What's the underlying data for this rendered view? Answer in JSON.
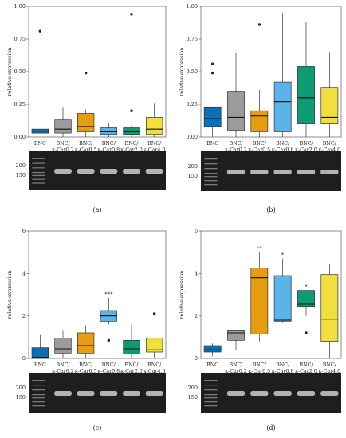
{
  "colors": [
    "#0a6fb5",
    "#9b9b9b",
    "#e89c12",
    "#5ab4e8",
    "#0d9b74",
    "#f0df3c"
  ],
  "chart_data": [
    {
      "type": "box",
      "panel_label": "(a)",
      "ylabel": "relative expression",
      "ylim": [
        0,
        1.0
      ],
      "yticks": [
        "0.00",
        "0.25",
        "0.50",
        "0.75",
        "1.00"
      ],
      "categories": [
        {
          "main": "BNC",
          "sub": ""
        },
        {
          "main": "BNC/",
          "sub": "κ-Car0.2"
        },
        {
          "main": "BNC/",
          "sub": "κ-Car0.5"
        },
        {
          "main": "BNC/",
          "sub": "κ-Car0.8"
        },
        {
          "main": "BNC/",
          "sub": "κ-Car2.0"
        },
        {
          "main": "BNC/",
          "sub": "κ-Car4.0"
        }
      ],
      "boxes": [
        {
          "whislo": 0.03,
          "q1": 0.03,
          "med": 0.045,
          "q3": 0.06,
          "whishi": 0.06,
          "fliers": [
            0.81
          ]
        },
        {
          "whislo": 0.0,
          "q1": 0.03,
          "med": 0.06,
          "q3": 0.13,
          "whishi": 0.23,
          "fliers": []
        },
        {
          "whislo": 0.0,
          "q1": 0.04,
          "med": 0.08,
          "q3": 0.18,
          "whishi": 0.21,
          "fliers": [
            0.49
          ]
        },
        {
          "whislo": 0.0,
          "q1": 0.02,
          "med": 0.04,
          "q3": 0.07,
          "whishi": 0.11,
          "fliers": []
        },
        {
          "whislo": 0.0,
          "q1": 0.02,
          "med": 0.04,
          "q3": 0.07,
          "whishi": 0.09,
          "fliers": [
            0.2,
            0.94
          ]
        },
        {
          "whislo": 0.0,
          "q1": 0.02,
          "med": 0.06,
          "q3": 0.15,
          "whishi": 0.26,
          "fliers": []
        }
      ],
      "significance": [
        "",
        "",
        "",
        "",
        "",
        ""
      ],
      "ladder": [
        "200",
        "150"
      ]
    },
    {
      "type": "box",
      "panel_label": "(b)",
      "ylabel": "relative expression",
      "ylim": [
        0,
        1.0
      ],
      "yticks": [
        "0.00",
        "0.25",
        "0.50",
        "0.75",
        "1.00"
      ],
      "categories": [
        {
          "main": "BNC",
          "sub": ""
        },
        {
          "main": "BNC/",
          "sub": "κ-Car0.2"
        },
        {
          "main": "BNC/",
          "sub": "κ-Car0.5"
        },
        {
          "main": "BNC/",
          "sub": "κ-Car0.8"
        },
        {
          "main": "BNC/",
          "sub": "κ-Car2.0"
        },
        {
          "main": "BNC/",
          "sub": "κ-Car4.0"
        }
      ],
      "boxes": [
        {
          "whislo": 0.0,
          "q1": 0.08,
          "med": 0.14,
          "q3": 0.23,
          "whishi": 0.23,
          "fliers": [
            0.49,
            0.56
          ]
        },
        {
          "whislo": 0.0,
          "q1": 0.05,
          "med": 0.15,
          "q3": 0.35,
          "whishi": 0.64,
          "fliers": []
        },
        {
          "whislo": 0.0,
          "q1": 0.04,
          "med": 0.16,
          "q3": 0.2,
          "whishi": 0.36,
          "fliers": [
            0.86
          ]
        },
        {
          "whislo": 0.0,
          "q1": 0.04,
          "med": 0.27,
          "q3": 0.42,
          "whishi": 0.95,
          "fliers": []
        },
        {
          "whislo": 0.0,
          "q1": 0.1,
          "med": 0.3,
          "q3": 0.54,
          "whishi": 0.88,
          "fliers": []
        },
        {
          "whislo": 0.0,
          "q1": 0.1,
          "med": 0.15,
          "q3": 0.38,
          "whishi": 0.65,
          "fliers": []
        }
      ],
      "significance": [
        "",
        "",
        "",
        "",
        "",
        ""
      ],
      "ladder": [
        "200",
        "150"
      ]
    },
    {
      "type": "box",
      "panel_label": "(c)",
      "ylabel": "relative expression",
      "ylim": [
        0,
        6
      ],
      "yticks": [
        "0",
        "2",
        "4",
        "6"
      ],
      "categories": [
        {
          "main": "BNC",
          "sub": ""
        },
        {
          "main": "BNC/",
          "sub": "κ-Car0.2"
        },
        {
          "main": "BNC/",
          "sub": "κ-Car0.5"
        },
        {
          "main": "BNC/",
          "sub": "κ-Car0.8"
        },
        {
          "main": "BNC/",
          "sub": "κ-Car2.0"
        },
        {
          "main": "BNC/",
          "sub": "κ-Car4.0"
        }
      ],
      "boxes": [
        {
          "whislo": 0.0,
          "q1": 0.0,
          "med": 0.05,
          "q3": 0.5,
          "whishi": 1.1,
          "fliers": []
        },
        {
          "whislo": 0.0,
          "q1": 0.25,
          "med": 0.45,
          "q3": 0.95,
          "whishi": 1.3,
          "fliers": []
        },
        {
          "whislo": 0.0,
          "q1": 0.25,
          "med": 0.6,
          "q3": 1.2,
          "whishi": 1.55,
          "fliers": []
        },
        {
          "whislo": 1.6,
          "q1": 1.75,
          "med": 2.0,
          "q3": 2.25,
          "whishi": 2.85,
          "fliers": [
            0.85
          ]
        },
        {
          "whislo": 0.0,
          "q1": 0.2,
          "med": 0.45,
          "q3": 0.85,
          "whishi": 1.6,
          "fliers": []
        },
        {
          "whislo": 0.0,
          "q1": 0.3,
          "med": 0.4,
          "q3": 0.95,
          "whishi": 0.95,
          "fliers": [
            2.1
          ]
        }
      ],
      "significance": [
        "",
        "",
        "",
        "***",
        "",
        ""
      ],
      "ladder": [
        "200",
        "150"
      ]
    },
    {
      "type": "box",
      "panel_label": "(d)",
      "ylabel": "relative expression",
      "ylim": [
        0,
        6
      ],
      "yticks": [
        "0",
        "2",
        "4",
        "6"
      ],
      "categories": [
        {
          "main": "BNC",
          "sub": ""
        },
        {
          "main": "BNC/",
          "sub": "κ-Car0.2"
        },
        {
          "main": "BNC/",
          "sub": "κ-Car0.5"
        },
        {
          "main": "BNC/",
          "sub": "κ-Car0.8"
        },
        {
          "main": "BNC/",
          "sub": "κ-Car2.0"
        },
        {
          "main": "BNC/",
          "sub": "κ-Car4.0"
        }
      ],
      "boxes": [
        {
          "whislo": 0.1,
          "q1": 0.3,
          "med": 0.4,
          "q3": 0.6,
          "whishi": 0.7,
          "fliers": []
        },
        {
          "whislo": 0.4,
          "q1": 0.85,
          "med": 1.2,
          "q3": 1.3,
          "whishi": 1.35,
          "fliers": []
        },
        {
          "whislo": 0.8,
          "q1": 1.15,
          "med": 3.8,
          "q3": 4.25,
          "whishi": 5.0,
          "fliers": []
        },
        {
          "whislo": 1.7,
          "q1": 1.75,
          "med": 1.8,
          "q3": 3.9,
          "whishi": 4.7,
          "fliers": []
        },
        {
          "whislo": 2.0,
          "q1": 2.45,
          "med": 2.55,
          "q3": 3.2,
          "whishi": 3.2,
          "fliers": [
            1.2
          ]
        },
        {
          "whislo": 0.0,
          "q1": 0.8,
          "med": 1.85,
          "q3": 3.95,
          "whishi": 4.45,
          "fliers": []
        }
      ],
      "significance": [
        "",
        "",
        "**",
        "*",
        "*",
        ""
      ],
      "ladder": [
        "200",
        "150"
      ]
    }
  ]
}
